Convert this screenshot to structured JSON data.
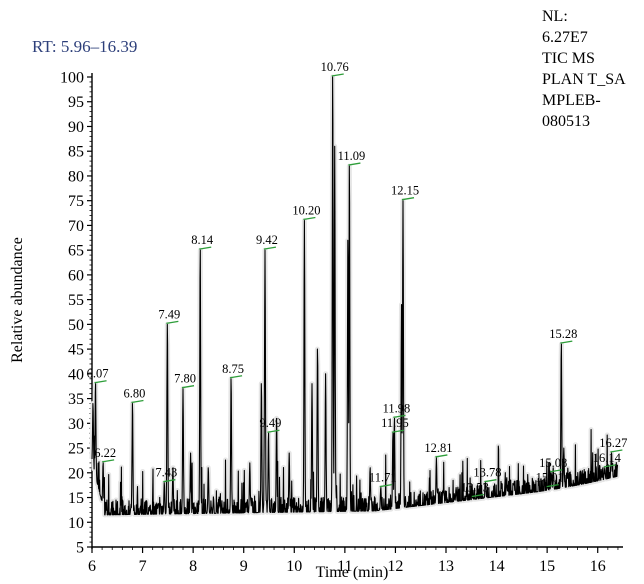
{
  "chart_data": {
    "type": "line",
    "range_label": "RT: 5.96–16.39",
    "info_lines": [
      "NL:",
      "6.27E7",
      "TIC MS",
      "PLAN T_SA",
      "MPLEB-",
      "080513"
    ],
    "xlabel": "Time (min)",
    "ylabel": "Relative abundance",
    "xlim": [
      6.0,
      16.5
    ],
    "ylim": [
      5,
      100
    ],
    "x_ticks": [
      6,
      7,
      8,
      9,
      10,
      11,
      12,
      13,
      14,
      15,
      16
    ],
    "y_ticks": [
      5,
      10,
      15,
      20,
      25,
      30,
      35,
      40,
      45,
      50,
      55,
      60,
      65,
      70,
      75,
      80,
      85,
      90,
      95,
      100
    ],
    "grid": false,
    "line_color": "#000000",
    "marker_color": "#2e9e3a",
    "peaks": [
      {
        "label": "6.07",
        "x": 6.07,
        "y": 38
      },
      {
        "label": "6.22",
        "x": 6.22,
        "y": 22
      },
      {
        "label": "6.80",
        "x": 6.8,
        "y": 34
      },
      {
        "label": "7.43",
        "x": 7.43,
        "y": 18
      },
      {
        "label": "7.49",
        "x": 7.49,
        "y": 50
      },
      {
        "label": "7.80",
        "x": 7.8,
        "y": 37
      },
      {
        "label": "8.14",
        "x": 8.14,
        "y": 65
      },
      {
        "label": "8.75",
        "x": 8.75,
        "y": 39
      },
      {
        "label": "9.42",
        "x": 9.42,
        "y": 65
      },
      {
        "label": "9.49",
        "x": 9.49,
        "y": 28
      },
      {
        "label": "10.20",
        "x": 10.2,
        "y": 71
      },
      {
        "label": "10.76",
        "x": 10.76,
        "y": 100
      },
      {
        "label": "11.09",
        "x": 11.09,
        "y": 82
      },
      {
        "label": "11.71",
        "x": 11.71,
        "y": 17
      },
      {
        "label": "11.95",
        "x": 11.95,
        "y": 28
      },
      {
        "label": "11.98",
        "x": 11.98,
        "y": 31
      },
      {
        "label": "12.15",
        "x": 12.15,
        "y": 75
      },
      {
        "label": "12.81",
        "x": 12.81,
        "y": 23
      },
      {
        "label": "13.53",
        "x": 13.53,
        "y": 15
      },
      {
        "label": "13.78",
        "x": 13.78,
        "y": 18
      },
      {
        "label": "15.01",
        "x": 15.01,
        "y": 17
      },
      {
        "label": "15.08",
        "x": 15.08,
        "y": 20
      },
      {
        "label": "15.28",
        "x": 15.28,
        "y": 46
      },
      {
        "label": "16.14",
        "x": 16.14,
        "y": 21
      },
      {
        "label": "16.27",
        "x": 16.27,
        "y": 24
      }
    ],
    "extra_peaks": [
      {
        "x": 6.02,
        "y": 34
      },
      {
        "x": 7.6,
        "y": 21
      },
      {
        "x": 7.95,
        "y": 24
      },
      {
        "x": 8.3,
        "y": 21
      },
      {
        "x": 9.12,
        "y": 22
      },
      {
        "x": 9.35,
        "y": 38
      },
      {
        "x": 9.65,
        "y": 31
      },
      {
        "x": 9.9,
        "y": 24
      },
      {
        "x": 10.35,
        "y": 38
      },
      {
        "x": 10.46,
        "y": 45
      },
      {
        "x": 10.62,
        "y": 40
      },
      {
        "x": 10.8,
        "y": 86
      },
      {
        "x": 11.06,
        "y": 67
      },
      {
        "x": 11.5,
        "y": 21
      },
      {
        "x": 12.12,
        "y": 54
      },
      {
        "x": 13.2,
        "y": 17
      },
      {
        "x": 14.2,
        "y": 19
      },
      {
        "x": 15.12,
        "y": 21
      },
      {
        "x": 15.33,
        "y": 25
      }
    ]
  }
}
